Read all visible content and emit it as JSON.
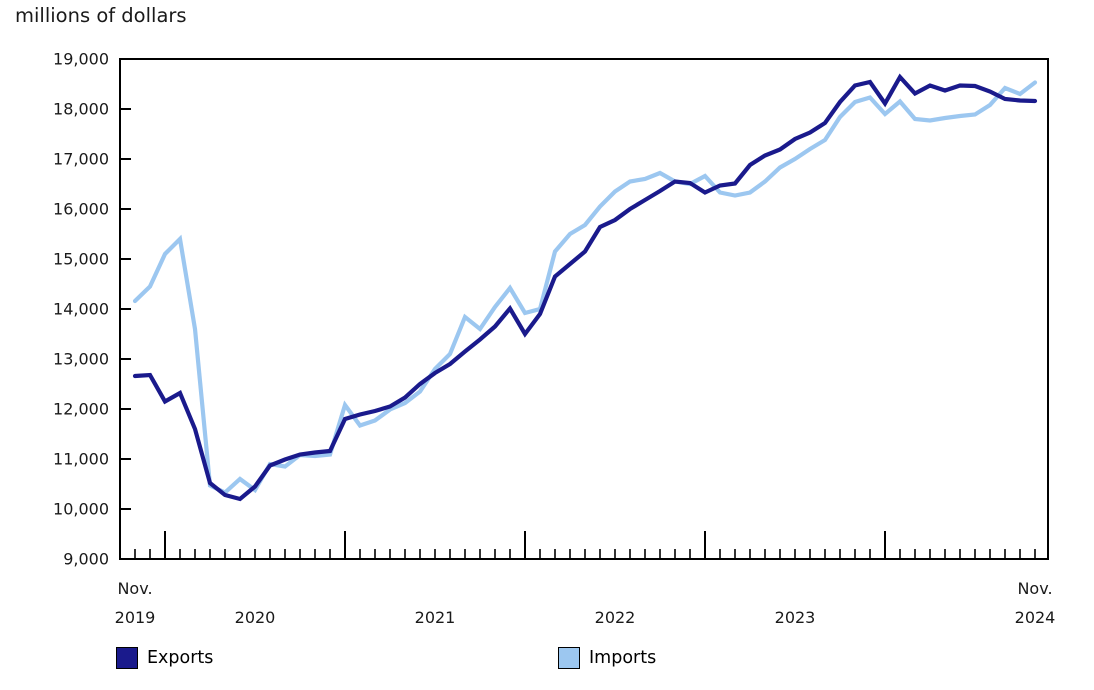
{
  "page_title": "millions of dollars",
  "legend": {
    "items": [
      {
        "label": "Exports",
        "color": "#1a1a8c"
      },
      {
        "label": "Imports",
        "color": "#9cc7f0"
      }
    ]
  },
  "chart_data": {
    "type": "line",
    "title": "millions of dollars",
    "unit_label": "millions of dollars",
    "xlabel": "",
    "ylabel": "millions of dollars",
    "grid": false,
    "legend_position": "bottom",
    "ylim": [
      9000,
      19000
    ],
    "y_ticks": [
      {
        "value": 9000,
        "label": "9,000"
      },
      {
        "value": 10000,
        "label": "10,000"
      },
      {
        "value": 11000,
        "label": "11,000"
      },
      {
        "value": 12000,
        "label": "12,000"
      },
      {
        "value": 13000,
        "label": "13,000"
      },
      {
        "value": 14000,
        "label": "14,000"
      },
      {
        "value": 15000,
        "label": "15,000"
      },
      {
        "value": 16000,
        "label": "16,000"
      },
      {
        "value": 17000,
        "label": "17,000"
      },
      {
        "value": 18000,
        "label": "18,000"
      },
      {
        "value": 19000,
        "label": "19,000"
      }
    ],
    "x_axis": {
      "start_month": "Nov.",
      "start_year": "2019",
      "end_month": "Nov.",
      "end_year": "2024",
      "year_labels": [
        "2020",
        "2021",
        "2022",
        "2023"
      ]
    },
    "months": [
      "Nov 2019",
      "Dec 2019",
      "Jan 2020",
      "Feb 2020",
      "Mar 2020",
      "Apr 2020",
      "May 2020",
      "Jun 2020",
      "Jul 2020",
      "Aug 2020",
      "Sep 2020",
      "Oct 2020",
      "Nov 2020",
      "Dec 2020",
      "Jan 2021",
      "Feb 2021",
      "Mar 2021",
      "Apr 2021",
      "May 2021",
      "Jun 2021",
      "Jul 2021",
      "Aug 2021",
      "Sep 2021",
      "Oct 2021",
      "Nov 2021",
      "Dec 2021",
      "Jan 2022",
      "Feb 2022",
      "Mar 2022",
      "Apr 2022",
      "May 2022",
      "Jun 2022",
      "Jul 2022",
      "Aug 2022",
      "Sep 2022",
      "Oct 2022",
      "Nov 2022",
      "Dec 2022",
      "Jan 2023",
      "Feb 2023",
      "Mar 2023",
      "Apr 2023",
      "May 2023",
      "Jun 2023",
      "Jul 2023",
      "Aug 2023",
      "Sep 2023",
      "Oct 2023",
      "Nov 2023",
      "Dec 2023",
      "Jan 2024",
      "Feb 2024",
      "Mar 2024",
      "Apr 2024",
      "May 2024",
      "Jun 2024",
      "Jul 2024",
      "Aug 2024",
      "Sep 2024",
      "Oct 2024",
      "Nov 2024"
    ],
    "series": [
      {
        "name": "Exports",
        "color": "#1a1a8c",
        "values": [
          12660,
          12680,
          12150,
          12320,
          11600,
          10520,
          10280,
          10200,
          10450,
          10870,
          10990,
          11090,
          11130,
          11160,
          11800,
          11890,
          11960,
          12050,
          12230,
          12500,
          12720,
          12900,
          13150,
          13390,
          13650,
          14010,
          13500,
          13900,
          14650,
          14900,
          15150,
          15640,
          15780,
          16000,
          16180,
          16360,
          16550,
          16520,
          16330,
          16470,
          16510,
          16880,
          17070,
          17190,
          17400,
          17530,
          17720,
          18140,
          18470,
          18540,
          18110,
          18640,
          18310,
          18470,
          18370,
          18470,
          18460,
          18350,
          18200,
          18170,
          18160
        ]
      },
      {
        "name": "Imports",
        "color": "#9cc7f0",
        "values": [
          14160,
          14450,
          15100,
          15400,
          13600,
          10470,
          10330,
          10600,
          10380,
          10900,
          10850,
          11080,
          11060,
          11090,
          12080,
          11670,
          11770,
          11990,
          12120,
          12350,
          12800,
          13100,
          13840,
          13600,
          14040,
          14420,
          13920,
          14000,
          15150,
          15500,
          15680,
          16050,
          16350,
          16550,
          16600,
          16720,
          16550,
          16500,
          16660,
          16330,
          16270,
          16330,
          16550,
          16830,
          17000,
          17200,
          17380,
          17840,
          18140,
          18230,
          17900,
          18150,
          17800,
          17770,
          17820,
          17860,
          17890,
          18080,
          18420,
          18300,
          18530
        ]
      }
    ]
  }
}
